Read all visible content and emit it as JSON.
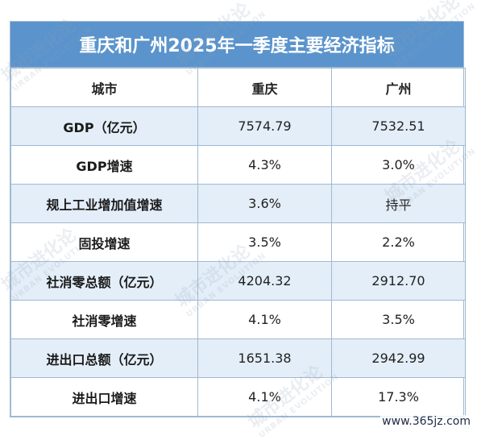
{
  "table": {
    "title": "重庆和广州2025年一季度主要经济指标",
    "headers": [
      "城市",
      "重庆",
      "广州"
    ],
    "rows": [
      {
        "label": "GDP（亿元）",
        "cq": "7574.79",
        "gz": "7532.51"
      },
      {
        "label": "GDP增速",
        "cq": "4.3%",
        "gz": "3.0%"
      },
      {
        "label": "规上工业增加值增速",
        "cq": "3.6%",
        "gz": "持平"
      },
      {
        "label": "固投增速",
        "cq": "3.5%",
        "gz": "2.2%"
      },
      {
        "label": "社消零总额（亿元）",
        "cq": "4204.32",
        "gz": "2912.70"
      },
      {
        "label": "社消零增速",
        "cq": "4.1%",
        "gz": "3.5%"
      },
      {
        "label": "进出口总额（亿元）",
        "cq": "1651.38",
        "gz": "2942.99"
      },
      {
        "label": "进出口增速",
        "cq": "4.1%",
        "gz": "17.3%"
      }
    ]
  },
  "watermark": {
    "text": "城市进化论",
    "subtext": "URBAN EVOLUTION"
  },
  "site_mark": "www.365jz.com"
}
